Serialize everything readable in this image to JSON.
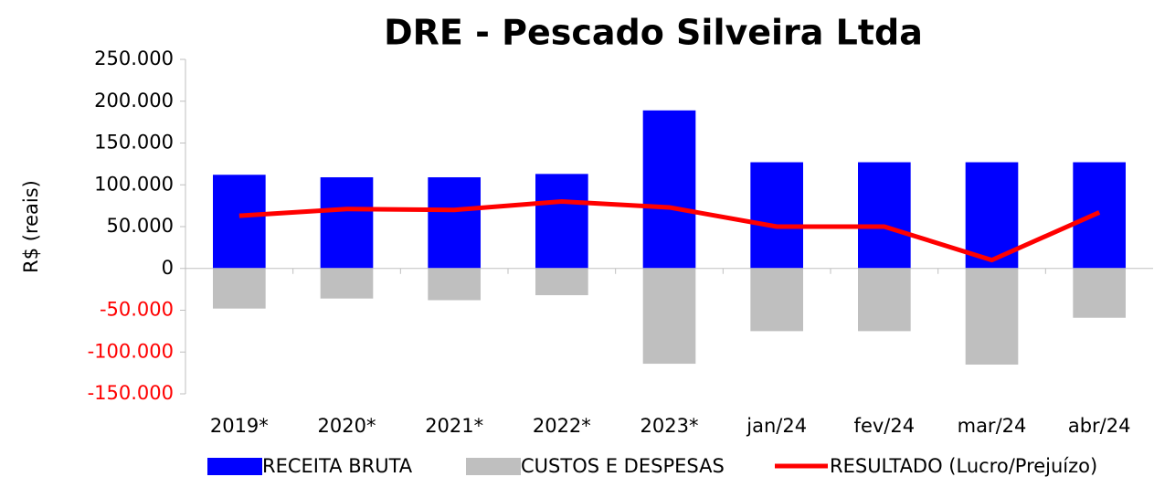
{
  "chart_data": {
    "type": "bar_line",
    "title": "DRE - Pescado Silveira Ltda",
    "y_label": "R$ (reais)",
    "categories": [
      "2019*",
      "2020*",
      "2021*",
      "2022*",
      "2023*",
      "jan/24",
      "fev/24",
      "mar/24",
      "abr/24"
    ],
    "series": [
      {
        "name": "RECEITA BRUTA",
        "type": "bar",
        "color": "#0000ff",
        "values": [
          112000,
          109000,
          109000,
          113000,
          189000,
          127000,
          127000,
          127000,
          127000
        ]
      },
      {
        "name": "CUSTOS E DESPESAS",
        "type": "bar",
        "color": "#bfbfbf",
        "values": [
          -48000,
          -36000,
          -38000,
          -32000,
          -114000,
          -75000,
          -75000,
          -115000,
          -59000
        ]
      },
      {
        "name": "RESULTADO (Lucro/Prejuízo)",
        "type": "line",
        "color": "#ff0000",
        "values": [
          63000,
          71000,
          70000,
          80000,
          73000,
          50000,
          50000,
          10000,
          67000
        ]
      }
    ],
    "ylim": [
      -150000,
      250000
    ],
    "yticks": [
      {
        "value": -150000,
        "label": "-150.000"
      },
      {
        "value": -100000,
        "label": "-100.000"
      },
      {
        "value": -50000,
        "label": "-50.000"
      },
      0,
      {
        "value": 50000,
        "label": "50.000"
      },
      {
        "value": 100000,
        "label": "100.000"
      },
      {
        "value": 150000,
        "label": "150.000"
      },
      {
        "value": 200000,
        "label": "200.000"
      },
      {
        "value": 250000,
        "label": "250.000"
      }
    ],
    "negative_tick_color": "#ff0000",
    "legend": "bottom"
  }
}
